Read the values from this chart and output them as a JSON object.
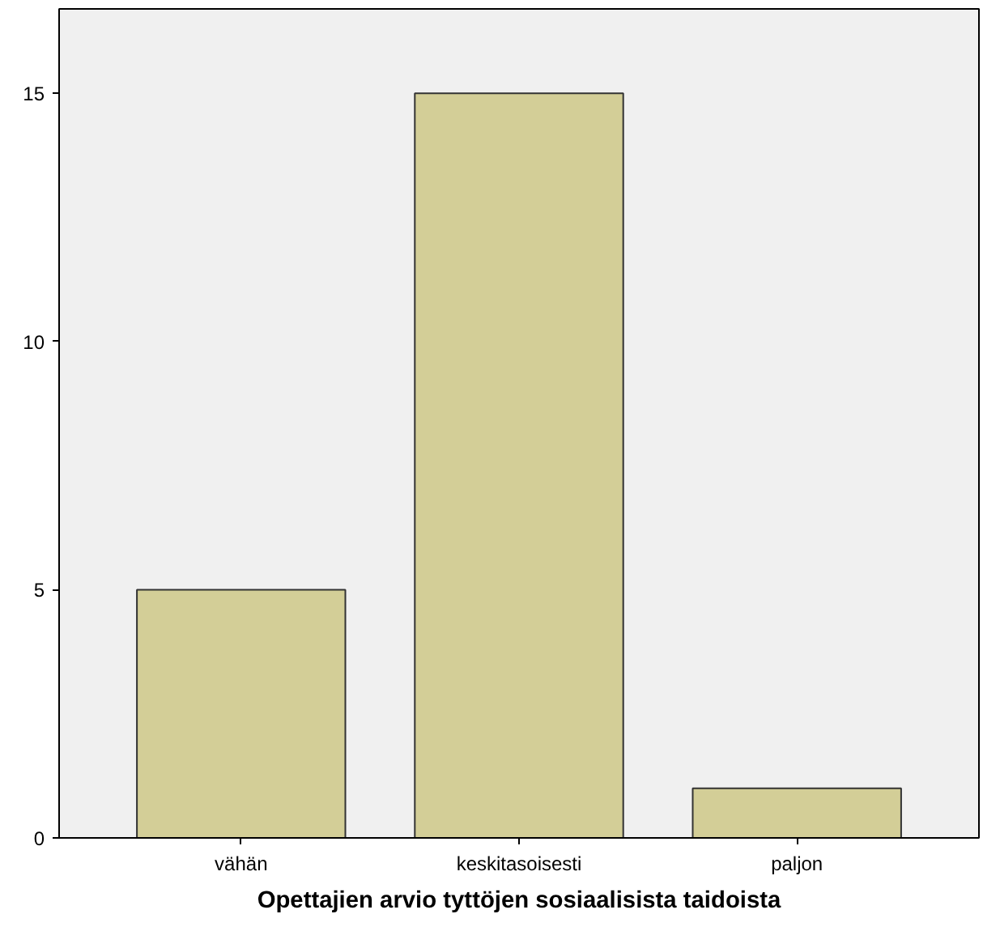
{
  "chart_data": {
    "type": "bar",
    "xlabel": "Opettajien arvio tyttöjen sosiaalisista taidoista",
    "categories": [
      "vähän",
      "keskitasoisesti",
      "paljon"
    ],
    "values": [
      5,
      15,
      1
    ],
    "color": "#d3ce97",
    "ylim": [
      0,
      16.7
    ],
    "yticks": [
      0,
      5,
      10,
      15
    ],
    "grid": false
  }
}
